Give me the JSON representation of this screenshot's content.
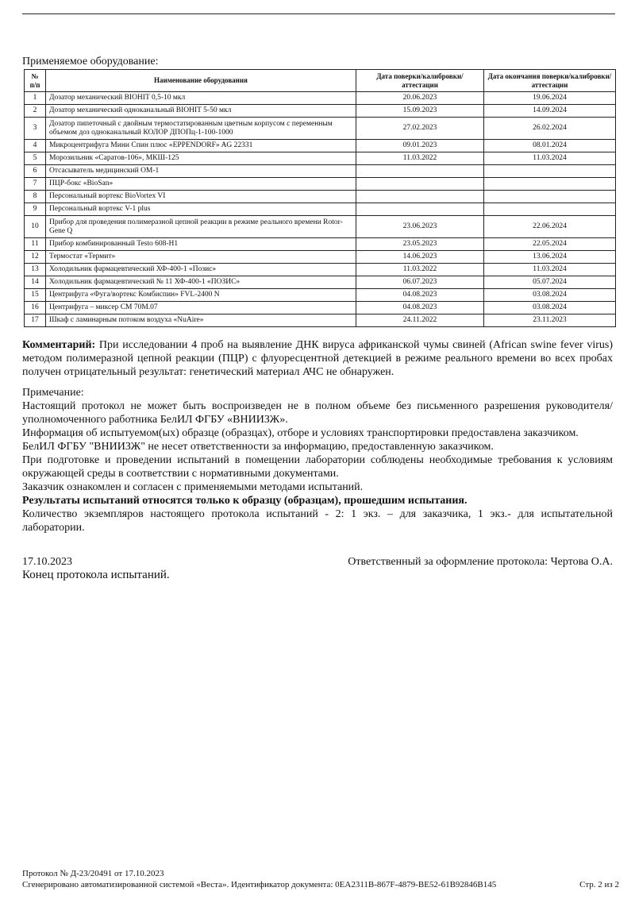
{
  "caption": "Применяемое оборудование:",
  "table": {
    "headers": [
      "№ п/п",
      "Наименование оборудования",
      "Дата поверки/калибровки/аттестации",
      "Дата окончания поверки/калибровки/аттестации"
    ],
    "rows": [
      [
        "1",
        "Дозатор механический BIOHIT 0,5-10 мкл",
        "20.06.2023",
        "19.06.2024"
      ],
      [
        "2",
        "Дозатор механический одноканальный BIOHIT 5-50 мкл",
        "15.09.2023",
        "14.09.2024"
      ],
      [
        "3",
        "Дозатор пипеточный с двойным термостатированным цветным корпусом с переменным объемом доз одноканальный КОЛОР ДПОПц-1-100-1000",
        "27.02.2023",
        "26.02.2024"
      ],
      [
        "4",
        "Микроцентрифуга Мини Спин плюс «EPPENDORF» AG 22331",
        "09.01.2023",
        "08.01.2024"
      ],
      [
        "5",
        "Морозильник «Саратов-106», МКШ-125",
        "11.03.2022",
        "11.03.2024"
      ],
      [
        "6",
        "Отсасыватель медицинский ОМ-1",
        "",
        ""
      ],
      [
        "7",
        "ПЦР-бокс «BioSan»",
        "",
        ""
      ],
      [
        "8",
        "Персональный вортекс BioVortex VI",
        "",
        ""
      ],
      [
        "9",
        "Персональный вортекс V-1 plus",
        "",
        ""
      ],
      [
        "10",
        "Прибор для проведения полимеразной цепной реакции в режиме реального времени Rotor-Gene Q",
        "23.06.2023",
        "22.06.2024"
      ],
      [
        "11",
        "Прибор комбинированный Testo 608-H1",
        "23.05.2023",
        "22.05.2024"
      ],
      [
        "12",
        "Термостат «Термит»",
        "14.06.2023",
        "13.06.2024"
      ],
      [
        "13",
        "Холодильник фармацевтический ХФ-400-1 «Позис»",
        "11.03.2022",
        "11.03.2024"
      ],
      [
        "14",
        "Холодильник фармацевтический № 11 ХФ-400-1 «ПОЗИС»",
        "06.07.2023",
        "05.07.2024"
      ],
      [
        "15",
        "Центрифуга «Фуга/вортекс Комбиспин» FVL-2400 N",
        "04.08.2023",
        "03.08.2024"
      ],
      [
        "16",
        "Центрифуга – миксер СМ 70М.07",
        "04.08.2023",
        "03.08.2024"
      ],
      [
        "17",
        "Шкаф с ламинарным потоком воздуха «NuAire»",
        "24.11.2022",
        "23.11.2023"
      ]
    ]
  },
  "comment": {
    "label": "Комментарий:",
    "text": " При исследовании 4 проб на выявление ДНК вируса африканской чумы свиней (African swine fever virus) методом полимеразной цепной реакции (ПЦР) с флуоресцентной детекцией в режиме реального времени во всех пробах получен отрицательный результат: генетический материал АЧС не обнаружен."
  },
  "note": {
    "title": "Примечание:",
    "lines": [
      "Настоящий протокол не может быть воспроизведен не в полном объеме без письменного разрешения руководителя/уполномоченного работника БелИЛ ФГБУ «ВНИИЗЖ».",
      "Информация об испытуемом(ых) образце (образцах), отборе и условиях транспортировки предоставлена заказчиком. БелИЛ ФГБУ \"ВНИИЗЖ\" не несет ответственности за информацию, предоставленную заказчиком.",
      "При подготовке и проведении испытаний в помещении лаборатории соблюдены необходимые требования к условиям окружающей среды в соответствии с нормативными документами.",
      "Заказчик ознакомлен и согласен с применяемыми методами испытаний."
    ],
    "bold": "Результаты испытаний относятся только к образцу (образцам), прошедшим испытания.",
    "copies": "Количество экземпляров настоящего протокола испытаний - 2: 1 экз. – для заказчика, 1 экз.- для испытательной лаборатории."
  },
  "date": "17.10.2023",
  "responsible": "Ответственный за оформление протокола: Чертова О.А.",
  "end": "Конец протокола испытаний.",
  "footer": {
    "protocol": "Протокол № Д-23/20491 от 17.10.2023",
    "generated": "Сгенерировано автоматизированной системой «Веста». Идентификатор документа: 0EA2311B-867F-4879-BE52-61B92846B145",
    "page": "Стр. 2 из 2"
  }
}
